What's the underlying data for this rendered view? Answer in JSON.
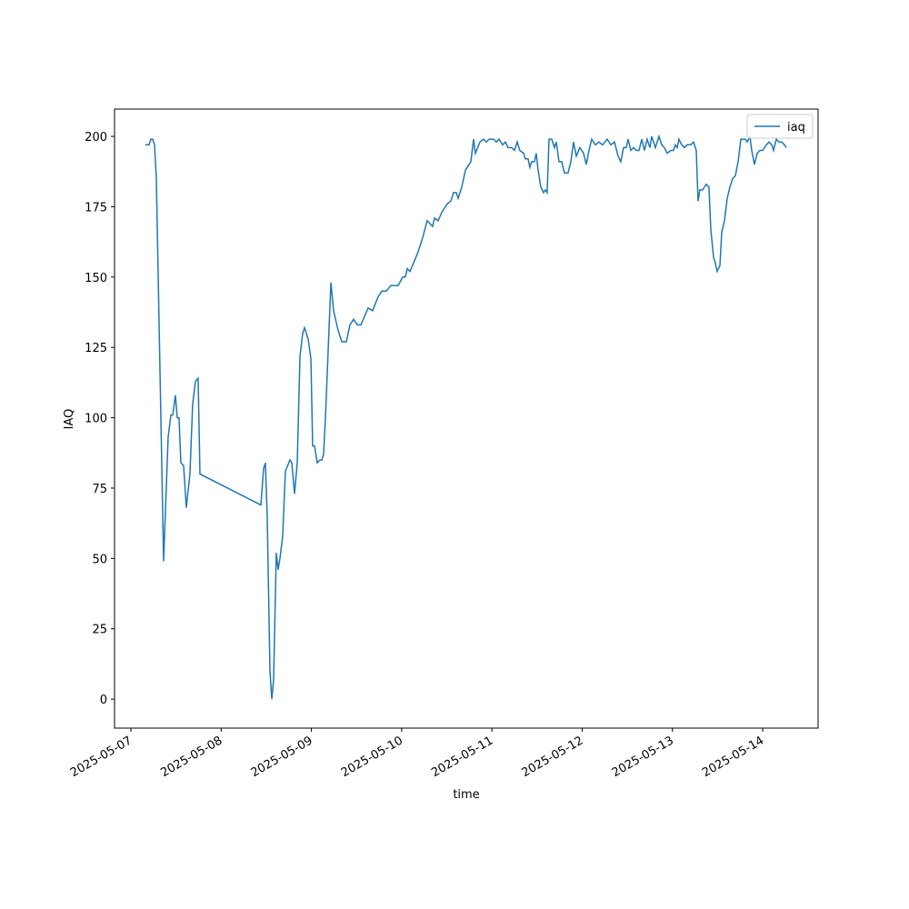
{
  "chart_data": {
    "type": "line",
    "x_label": "time",
    "y_label": "IAQ",
    "x": [
      "2025-05-07 03:52",
      "2025-05-07 04:50",
      "2025-05-07 05:19",
      "2025-05-07 05:48",
      "2025-05-07 06:17",
      "2025-05-07 06:46",
      "2025-05-07 08:42",
      "2025-05-07 09:54",
      "2025-05-07 10:38",
      "2025-05-07 11:07",
      "2025-05-07 11:50",
      "2025-05-07 12:19",
      "2025-05-07 12:48",
      "2025-05-07 13:17",
      "2025-05-07 14:01",
      "2025-05-07 14:44",
      "2025-05-07 15:42",
      "2025-05-07 16:26",
      "2025-05-07 17:10",
      "2025-05-07 17:53",
      "2025-05-07 18:22",
      "2025-05-08 10:34",
      "2025-05-08 11:17",
      "2025-05-08 11:46",
      "2025-05-08 12:15",
      "2025-05-08 12:59",
      "2025-05-08 13:28",
      "2025-05-08 13:57",
      "2025-05-08 14:40",
      "2025-05-08 15:09",
      "2025-05-08 15:38",
      "2025-05-08 16:22",
      "2025-05-08 17:05",
      "2025-05-08 18:18",
      "2025-05-08 18:47",
      "2025-05-08 19:31",
      "2025-05-08 20:14",
      "2025-05-08 20:58",
      "2025-05-08 21:41",
      "2025-05-08 22:10",
      "2025-05-08 23:08",
      "2025-05-08 23:52",
      "2025-05-09 00:20",
      "2025-05-09 00:50",
      "2025-05-09 01:33",
      "2025-05-09 02:17",
      "2025-05-09 02:46",
      "2025-05-09 03:14",
      "2025-05-09 03:44",
      "2025-05-09 05:11",
      "2025-05-09 05:54",
      "2025-05-09 07:07",
      "2025-05-09 08:05",
      "2025-05-09 09:17",
      "2025-05-09 10:15",
      "2025-05-09 11:13",
      "2025-05-09 12:11",
      "2025-05-09 13:09",
      "2025-05-09 15:05",
      "2025-05-09 16:17",
      "2025-05-09 17:44",
      "2025-05-09 18:43",
      "2025-05-09 19:55",
      "2025-05-09 21:08",
      "2025-05-09 23:04",
      "2025-05-10 00:16",
      "2025-05-10 00:59",
      "2025-05-10 01:29",
      "2025-05-10 02:12",
      "2025-05-10 03:10",
      "2025-05-10 04:23",
      "2025-05-10 05:35",
      "2025-05-10 06:47",
      "2025-05-10 08:14",
      "2025-05-10 08:44",
      "2025-05-10 09:42",
      "2025-05-10 10:40",
      "2025-05-10 12:07",
      "2025-05-10 13:05",
      "2025-05-10 13:48",
      "2025-05-10 14:32",
      "2025-05-10 15:01",
      "2025-05-10 15:59",
      "2025-05-10 16:57",
      "2025-05-10 18:24",
      "2025-05-10 19:07",
      "2025-05-10 19:36",
      "2025-05-10 20:49",
      "2025-05-10 21:47",
      "2025-05-10 22:30",
      "2025-05-10 23:14",
      "2025-05-11 00:26",
      "2025-05-11 01:10",
      "2025-05-11 01:53",
      "2025-05-11 02:51",
      "2025-05-11 03:35",
      "2025-05-11 04:18",
      "2025-05-11 05:16",
      "2025-05-11 05:59",
      "2025-05-11 06:43",
      "2025-05-11 07:26",
      "2025-05-11 08:25",
      "2025-05-11 08:53",
      "2025-05-11 09:37",
      "2025-05-11 10:06",
      "2025-05-11 10:35",
      "2025-05-11 11:19",
      "2025-05-11 11:47",
      "2025-05-11 12:17",
      "2025-05-11 13:00",
      "2025-05-11 13:44",
      "2025-05-11 14:13",
      "2025-05-11 14:41",
      "2025-05-11 15:11",
      "2025-05-11 15:54",
      "2025-05-11 16:38",
      "2025-05-11 17:07",
      "2025-05-11 17:50",
      "2025-05-11 18:34",
      "2025-05-11 19:17",
      "2025-05-11 20:15",
      "2025-05-11 20:59",
      "2025-05-11 21:42",
      "2025-05-11 22:26",
      "2025-05-11 23:23",
      "2025-05-12 00:22",
      "2025-05-12 01:05",
      "2025-05-12 01:49",
      "2025-05-12 02:32",
      "2025-05-12 03:30",
      "2025-05-12 04:28",
      "2025-05-12 05:26",
      "2025-05-12 06:39",
      "2025-05-12 07:37",
      "2025-05-12 08:35",
      "2025-05-12 09:33",
      "2025-05-12 10:16",
      "2025-05-12 11:00",
      "2025-05-12 11:43",
      "2025-05-12 12:13",
      "2025-05-12 12:56",
      "2025-05-12 13:40",
      "2025-05-12 14:23",
      "2025-05-12 15:07",
      "2025-05-12 15:50",
      "2025-05-12 16:34",
      "2025-05-12 17:17",
      "2025-05-12 18:01",
      "2025-05-12 18:29",
      "2025-05-12 19:28",
      "2025-05-12 20:25",
      "2025-05-12 21:09",
      "2025-05-12 21:52",
      "2025-05-12 22:36",
      "2025-05-12 23:34",
      "2025-05-13 00:17",
      "2025-05-13 00:46",
      "2025-05-13 01:16",
      "2025-05-13 01:44",
      "2025-05-13 02:28",
      "2025-05-13 03:11",
      "2025-05-13 03:55",
      "2025-05-13 04:53",
      "2025-05-13 05:37",
      "2025-05-13 06:20",
      "2025-05-13 06:49",
      "2025-05-13 07:18",
      "2025-05-13 08:02",
      "2025-05-13 08:59",
      "2025-05-13 09:43",
      "2025-05-13 10:12",
      "2025-05-13 10:56",
      "2025-05-13 11:25",
      "2025-05-13 11:53",
      "2025-05-13 12:37",
      "2025-05-13 13:07",
      "2025-05-13 13:50",
      "2025-05-13 14:34",
      "2025-05-13 15:17",
      "2025-05-13 16:01",
      "2025-05-13 16:44",
      "2025-05-13 17:28",
      "2025-05-13 18:11",
      "2025-05-13 19:23",
      "2025-05-13 19:53",
      "2025-05-13 20:36",
      "2025-05-13 21:05",
      "2025-05-13 21:49",
      "2025-05-13 22:32",
      "2025-05-13 23:16",
      "2025-05-13 23:59",
      "2025-05-14 00:58",
      "2025-05-14 01:41",
      "2025-05-14 02:25",
      "2025-05-14 02:53",
      "2025-05-14 03:37",
      "2025-05-14 04:20",
      "2025-05-14 05:04",
      "2025-05-14 05:47",
      "2025-05-14 06:16"
    ],
    "series": [
      {
        "name": "iaq",
        "color": "#1f77b4",
        "values": [
          197,
          197,
          199,
          199,
          197,
          185,
          49,
          93,
          101,
          101,
          108,
          100,
          100,
          84,
          83,
          68,
          80,
          105,
          113,
          114,
          80,
          69,
          82,
          84,
          65,
          10,
          0,
          7,
          52,
          46,
          50,
          58,
          81,
          85,
          84,
          73,
          84,
          122,
          130,
          132,
          128,
          121,
          90,
          90,
          84,
          85,
          85,
          87,
          100,
          148,
          138,
          131,
          127,
          127,
          133,
          135,
          133,
          133,
          139,
          138,
          143,
          145,
          145,
          147,
          147,
          150,
          150,
          153,
          152,
          155,
          159,
          164,
          170,
          168,
          171,
          170,
          173,
          176,
          177,
          180,
          180,
          178,
          182,
          188,
          191,
          199,
          194,
          198,
          199,
          198,
          199,
          199,
          198,
          199,
          197,
          198,
          196,
          196,
          195,
          198,
          195,
          194,
          192,
          192,
          189,
          191,
          191,
          194,
          188,
          182,
          180,
          181,
          180,
          199,
          199,
          196,
          198,
          191,
          191,
          187,
          187,
          191,
          198,
          193,
          196,
          194,
          190,
          195,
          199,
          197,
          198,
          197,
          199,
          197,
          198,
          193,
          191,
          196,
          196,
          199,
          195,
          196,
          195,
          195,
          199,
          195,
          199,
          196,
          200,
          196,
          200,
          197,
          196,
          194,
          195,
          195,
          197,
          196,
          199,
          197,
          196,
          197,
          197,
          198,
          195,
          177,
          181,
          181,
          183,
          182,
          167,
          157,
          155,
          152,
          154,
          166,
          170,
          178,
          182,
          185,
          186,
          191,
          199,
          199,
          198,
          200,
          195,
          190,
          194,
          195,
          195,
          197,
          198,
          197,
          195,
          199,
          198,
          198,
          197,
          196
        ]
      }
    ],
    "xlim": [
      "2025-05-06 19:39",
      "2025-05-14 14:44"
    ],
    "xticks": [
      "2025-05-07",
      "2025-05-08",
      "2025-05-09",
      "2025-05-10",
      "2025-05-11",
      "2025-05-12",
      "2025-05-13",
      "2025-05-14"
    ],
    "ylim": [
      -10.3,
      209.7
    ],
    "yticks": [
      0,
      25,
      50,
      75,
      100,
      125,
      150,
      175,
      200
    ],
    "grid": false,
    "legend": "upper-right"
  }
}
